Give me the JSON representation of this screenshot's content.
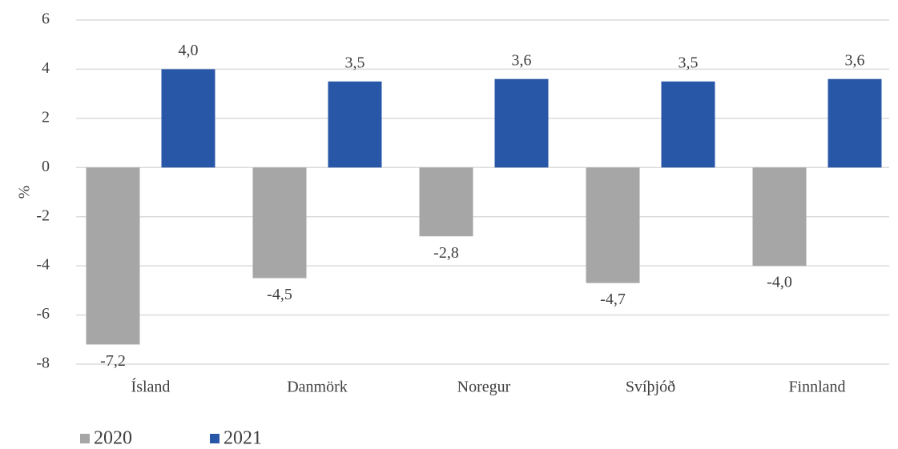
{
  "chart_data": {
    "type": "bar",
    "y_label": "%",
    "categories": [
      "Ísland",
      "Danmörk",
      "Noregur",
      "Svíþjóð",
      "Finnland"
    ],
    "series": [
      {
        "name": "2020",
        "color": "#a6a6a6",
        "values": [
          -7.2,
          -4.5,
          -2.8,
          -4.7,
          -4.0
        ],
        "value_labels": [
          "-7,2",
          "-4,5",
          "-2,8",
          "-4,7",
          "-4,0"
        ]
      },
      {
        "name": "2021",
        "color": "#2957a8",
        "values": [
          4.0,
          3.5,
          3.6,
          3.5,
          3.6
        ],
        "value_labels": [
          "4,0",
          "3,5",
          "3,6",
          "3,5",
          "3,6"
        ]
      }
    ],
    "ylim": [
      -8,
      6
    ],
    "yticks": [
      -8,
      -6,
      -4,
      -2,
      0,
      2,
      4,
      6
    ],
    "grid": true,
    "legend": "bottom-left"
  }
}
